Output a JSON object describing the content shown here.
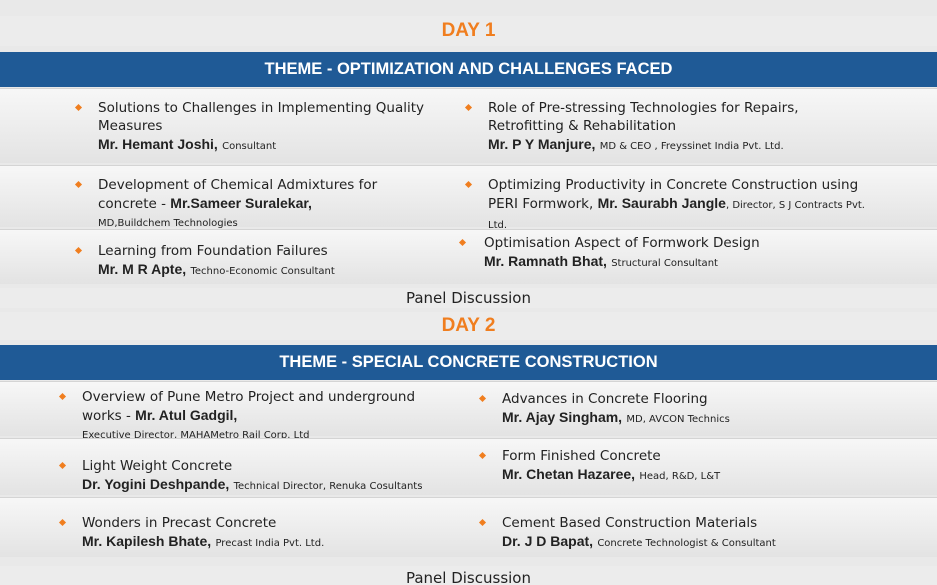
{
  "day1": {
    "title": "DAY 1",
    "theme": "THEME - OPTIMIZATION AND CHALLENGES FACED",
    "talks": [
      {
        "topic": "Solutions to Challenges in Implementing Quality Measures",
        "speaker": "Mr. Hemant Joshi,",
        "role": "Consultant"
      },
      {
        "topic": "Role of Pre-stressing Technologies for Repairs, Retrofitting & Rehabilitation",
        "speaker": "Mr. P Y Manjure,",
        "role": "MD & CEO , Freyssinet India Pvt. Ltd."
      },
      {
        "topic": "Development of Chemical Admixtures for concrete - ",
        "speaker": "Mr.Sameer Suralekar,",
        "role": "MD,Buildchem Technologies"
      },
      {
        "topic": "Optimizing Productivity in Concrete Construction using PERI Formwork, ",
        "speaker": "Mr. Saurabh Jangle",
        "role": ", Director, S J Contracts Pvt. Ltd."
      },
      {
        "topic": "Learning from Foundation Failures",
        "speaker": "Mr. M R Apte,",
        "role": "Techno-Economic Consultant"
      },
      {
        "topic": "Optimisation Aspect of Formwork Design",
        "speaker": "Mr. Ramnath Bhat,",
        "role": "Structural Consultant"
      }
    ],
    "panel": "Panel Discussion"
  },
  "day2": {
    "title": "DAY 2",
    "theme": "THEME - SPECIAL CONCRETE CONSTRUCTION",
    "talks": [
      {
        "topic": "Overview of Pune Metro Project and underground works - ",
        "speaker": "Mr. Atul Gadgil,",
        "role": "Executive Director, MAHAMetro Rail Corp. Ltd"
      },
      {
        "topic": "Advances in Concrete Flooring",
        "speaker": "Mr. Ajay Singham,",
        "role": "MD, AVCON Technics"
      },
      {
        "topic": "Light Weight Concrete",
        "speaker": "Dr. Yogini Deshpande,",
        "role": "Technical Director, Renuka Cosultants"
      },
      {
        "topic": "Form Finished Concrete",
        "speaker": "Mr. Chetan Hazaree,",
        "role": "Head, R&D, L&T"
      },
      {
        "topic": "Wonders in Precast Concrete",
        "speaker": "Mr. Kapilesh Bhate,",
        "role": "Precast India Pvt. Ltd."
      },
      {
        "topic": "Cement Based Construction Materials",
        "speaker": "Dr. J D Bapat,",
        "role": "Concrete Technologist & Consultant"
      }
    ],
    "panel": "Panel Discussion"
  },
  "colors": {
    "accent": "#f07e1f",
    "theme_bar": "#1f5a96"
  }
}
